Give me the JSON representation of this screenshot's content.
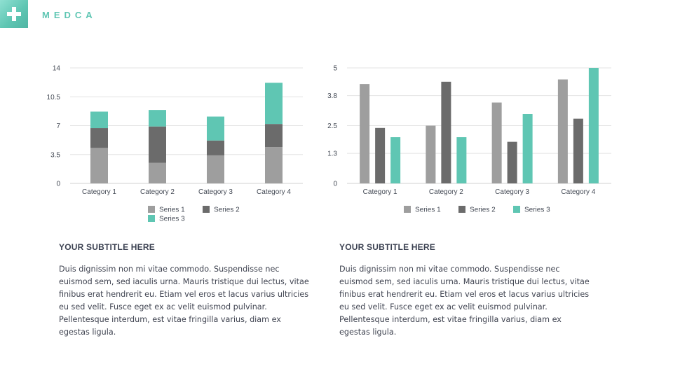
{
  "brand": {
    "name": "MEDCA",
    "logo_icon": "plus-cross-icon",
    "accent": "#5fc6b3"
  },
  "colors": {
    "series1": "#9e9e9e",
    "series2": "#6b6b6b",
    "series3": "#5fc6b3",
    "grid": "#e3e3e3",
    "axis": "#d0d0d0"
  },
  "chart_data": [
    {
      "type": "bar",
      "stacked": true,
      "categories": [
        "Category 1",
        "Category 2",
        "Category 3",
        "Category 4"
      ],
      "series": [
        {
          "name": "Series 1",
          "values": [
            4.3,
            2.5,
            3.4,
            4.4
          ]
        },
        {
          "name": "Series 2",
          "values": [
            2.4,
            4.4,
            1.8,
            2.8
          ]
        },
        {
          "name": "Series 3",
          "values": [
            2.0,
            2.0,
            2.9,
            5.0
          ]
        }
      ],
      "ylim": [
        0,
        14
      ],
      "yticks": [
        "0",
        "3.5",
        "7",
        "10.5",
        "14"
      ],
      "grid": true,
      "legend": "bottom"
    },
    {
      "type": "bar",
      "stacked": false,
      "categories": [
        "Category 1",
        "Category 2",
        "Category 3",
        "Category 4"
      ],
      "series": [
        {
          "name": "Series 1",
          "values": [
            4.3,
            2.5,
            3.5,
            4.5
          ]
        },
        {
          "name": "Series 2",
          "values": [
            2.4,
            4.4,
            1.8,
            2.8
          ]
        },
        {
          "name": "Series 3",
          "values": [
            2.0,
            2.0,
            3.0,
            5.0
          ]
        }
      ],
      "ylim": [
        0,
        5
      ],
      "yticks": [
        "0",
        "1.3",
        "2.5",
        "3.8",
        "5"
      ],
      "grid": true,
      "legend": "bottom"
    }
  ],
  "sections": [
    {
      "subtitle": "YOUR SUBTITLE HERE",
      "text": "Duis dignissim non mi vitae commodo. Suspendisse nec euismod sem, sed iaculis urna. Mauris tristique dui lectus, vitae finibus erat hendrerit eu. Etiam vel eros et lacus varius ultricies eu sed velit. Fusce eget ex ac velit euismod pulvinar. Pellentesque interdum, est vitae fringilla varius, diam ex egestas ligula."
    },
    {
      "subtitle": "YOUR SUBTITLE HERE",
      "text": "Duis dignissim non mi vitae commodo. Suspendisse nec euismod sem, sed iaculis urna. Mauris tristique dui lectus, vitae finibus erat hendrerit eu. Etiam vel eros et lacus varius ultricies eu sed velit. Fusce eget ex ac velit euismod pulvinar. Pellentesque interdum, est vitae fringilla varius, diam ex egestas ligula."
    }
  ]
}
